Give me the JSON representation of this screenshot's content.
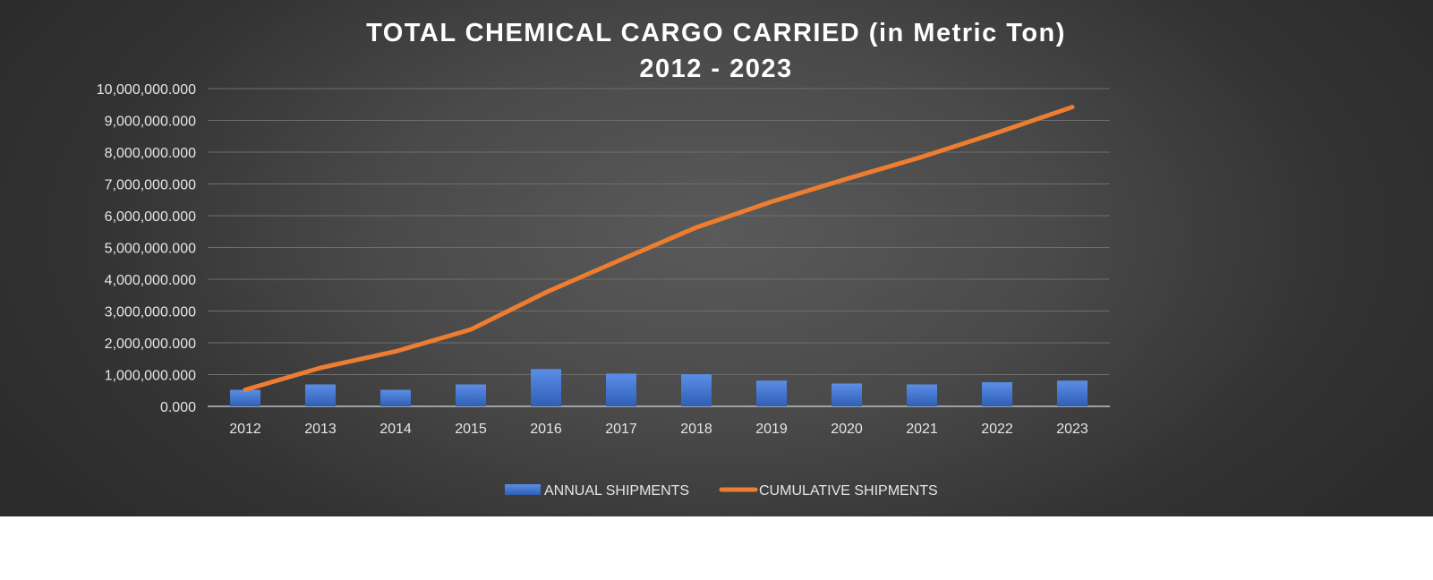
{
  "chart_data": {
    "type": "bar",
    "title": "TOTAL CHEMICAL CARGO CARRIED (in Metric Ton)",
    "subtitle": "2012 - 2023",
    "categories": [
      "2012",
      "2013",
      "2014",
      "2015",
      "2016",
      "2017",
      "2018",
      "2019",
      "2020",
      "2021",
      "2022",
      "2023"
    ],
    "series": [
      {
        "name": "ANNUAL SHIPMENTS",
        "type": "bar",
        "color": "#4472C4",
        "values": [
          520000,
          690000,
          520000,
          690000,
          1170000,
          1030000,
          1010000,
          810000,
          720000,
          690000,
          760000,
          810000
        ]
      },
      {
        "name": "CUMULATIVE SHIPMENTS",
        "type": "line",
        "color": "#ED7D31",
        "values": [
          520000,
          1210000,
          1730000,
          2420000,
          3590000,
          4620000,
          5630000,
          6440000,
          7160000,
          7850000,
          8610000,
          9420000
        ]
      }
    ],
    "ylim": [
      0,
      10000000
    ],
    "yticks": [
      0,
      1000000,
      2000000,
      3000000,
      4000000,
      5000000,
      6000000,
      7000000,
      8000000,
      9000000,
      10000000
    ],
    "ytick_labels": [
      "0.000",
      "1,000,000.000",
      "2,000,000.000",
      "3,000,000.000",
      "4,000,000.000",
      "5,000,000.000",
      "6,000,000.000",
      "7,000,000.000",
      "8,000,000.000",
      "9,000,000.000",
      "10,000,000.000"
    ],
    "xlabel": "",
    "ylabel": "",
    "grid": true,
    "legend": "bottom"
  }
}
